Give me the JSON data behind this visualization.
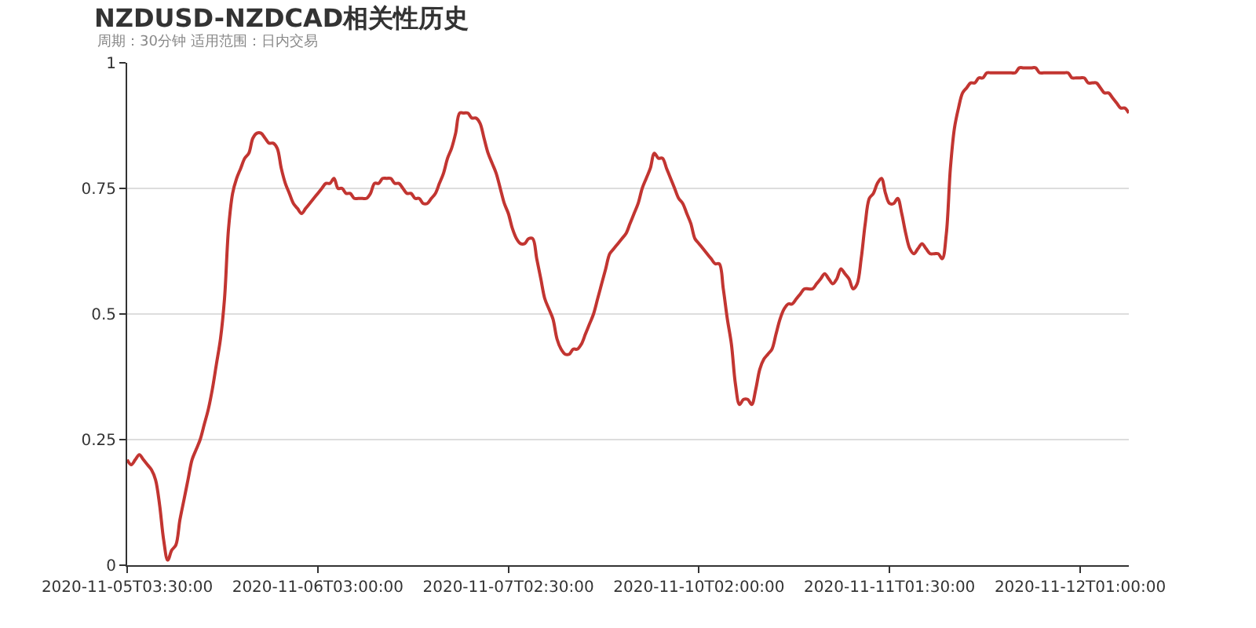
{
  "chart_data": {
    "type": "line",
    "title": "NZDUSD-NZDCAD相关性历史",
    "subtitle": "周期：30分钟 适用范围：日内交易",
    "categories": [
      "2020-11-05T03:30:00",
      null,
      null,
      null,
      null,
      null,
      null,
      null,
      null,
      null,
      null,
      null,
      null,
      null,
      null,
      null,
      null,
      null,
      null,
      null,
      null,
      null,
      null,
      null,
      null,
      null,
      null,
      null,
      null,
      null,
      null,
      null,
      null,
      null,
      null,
      null,
      null,
      null,
      null,
      null,
      null,
      null,
      null,
      null,
      null,
      null,
      null,
      "2020-11-06T03:00:00",
      null,
      null,
      null,
      null,
      null,
      null,
      null,
      null,
      null,
      null,
      null,
      null,
      null,
      null,
      null,
      null,
      null,
      null,
      null,
      null,
      null,
      null,
      null,
      null,
      null,
      null,
      null,
      null,
      null,
      null,
      null,
      null,
      null,
      null,
      null,
      null,
      null,
      null,
      null,
      null,
      null,
      null,
      null,
      null,
      null,
      null,
      "2020-11-07T02:30:00",
      null,
      null,
      null,
      null,
      null,
      null,
      null,
      null,
      null,
      null,
      null,
      null,
      null,
      null,
      null,
      null,
      null,
      null,
      null,
      null,
      null,
      null,
      null,
      null,
      null,
      null,
      null,
      null,
      null,
      null,
      null,
      null,
      null,
      null,
      null,
      null,
      null,
      null,
      null,
      null,
      null,
      null,
      null,
      null,
      null,
      null,
      "2020-11-10T02:00:00",
      null,
      null,
      null,
      null,
      null,
      null,
      null,
      null,
      null,
      null,
      null,
      null,
      null,
      null,
      null,
      null,
      null,
      null,
      null,
      null,
      null,
      null,
      null,
      null,
      null,
      null,
      null,
      null,
      null,
      null,
      null,
      null,
      null,
      null,
      null,
      null,
      null,
      null,
      null,
      null,
      null,
      null,
      null,
      null,
      null,
      null,
      "2020-11-11T01:30:00",
      null,
      null,
      null,
      null,
      null,
      null,
      null,
      null,
      null,
      null,
      null,
      null,
      null,
      null,
      null,
      null,
      null,
      null,
      null,
      null,
      null,
      null,
      null,
      null,
      null,
      null,
      null,
      null,
      null,
      null,
      null,
      null,
      null,
      null,
      null,
      null,
      null,
      null,
      null,
      null,
      null,
      null,
      null,
      null,
      null,
      null,
      "2020-11-12T01:00:00",
      null,
      null,
      null,
      null,
      null,
      null,
      null,
      null,
      null,
      null,
      null,
      null
    ],
    "ylim": [
      0,
      1
    ],
    "yticks": [
      0,
      0.25,
      0.5,
      0.75,
      1
    ],
    "grid": "y",
    "marker": "none",
    "line_style": "solid",
    "series": [
      {
        "color": "#c23531",
        "values": [
          0.21,
          0.2,
          0.21,
          0.22,
          0.21,
          0.2,
          0.19,
          0.17,
          0.12,
          0.05,
          0.01,
          0.03,
          0.04,
          0.09,
          0.13,
          0.17,
          0.21,
          0.23,
          0.25,
          0.28,
          0.31,
          0.35,
          0.4,
          0.45,
          0.53,
          0.67,
          0.74,
          0.77,
          0.79,
          0.81,
          0.82,
          0.85,
          0.86,
          0.86,
          0.85,
          0.84,
          0.84,
          0.83,
          0.79,
          0.76,
          0.74,
          0.72,
          0.71,
          0.7,
          0.71,
          0.72,
          0.73,
          0.74,
          0.75,
          0.76,
          0.76,
          0.77,
          0.75,
          0.75,
          0.74,
          0.74,
          0.73,
          0.73,
          0.73,
          0.73,
          0.74,
          0.76,
          0.76,
          0.77,
          0.77,
          0.77,
          0.76,
          0.76,
          0.75,
          0.74,
          0.74,
          0.73,
          0.73,
          0.72,
          0.72,
          0.73,
          0.74,
          0.76,
          0.78,
          0.81,
          0.83,
          0.86,
          0.9,
          0.9,
          0.9,
          0.89,
          0.89,
          0.88,
          0.85,
          0.82,
          0.8,
          0.78,
          0.75,
          0.72,
          0.7,
          0.67,
          0.65,
          0.64,
          0.64,
          0.65,
          0.65,
          0.61,
          0.57,
          0.53,
          0.51,
          0.49,
          0.45,
          0.43,
          0.42,
          0.42,
          0.43,
          0.43,
          0.44,
          0.46,
          0.48,
          0.5,
          0.53,
          0.56,
          0.59,
          0.62,
          0.63,
          0.64,
          0.65,
          0.66,
          0.68,
          0.7,
          0.72,
          0.75,
          0.77,
          0.79,
          0.82,
          0.81,
          0.81,
          0.79,
          0.77,
          0.75,
          0.73,
          0.72,
          0.7,
          0.68,
          0.65,
          0.64,
          0.63,
          0.62,
          0.61,
          0.6,
          0.6,
          0.55,
          0.49,
          0.44,
          0.36,
          0.32,
          0.33,
          0.33,
          0.32,
          0.35,
          0.39,
          0.41,
          0.42,
          0.43,
          0.46,
          0.49,
          0.51,
          0.52,
          0.52,
          0.53,
          0.54,
          0.55,
          0.55,
          0.55,
          0.56,
          0.57,
          0.58,
          0.57,
          0.56,
          0.57,
          0.59,
          0.58,
          0.57,
          0.55,
          0.56,
          0.61,
          0.68,
          0.73,
          0.74,
          0.76,
          0.77,
          0.74,
          0.72,
          0.72,
          0.73,
          0.7,
          0.66,
          0.63,
          0.62,
          0.63,
          0.64,
          0.63,
          0.62,
          0.62,
          0.62,
          0.61,
          0.66,
          0.79,
          0.87,
          0.91,
          0.94,
          0.95,
          0.96,
          0.96,
          0.97,
          0.97,
          0.98,
          0.98,
          0.98,
          0.98,
          0.98,
          0.98,
          0.98,
          0.98,
          0.99,
          0.99,
          0.99,
          0.99,
          0.99,
          0.98,
          0.98,
          0.98,
          0.98,
          0.98,
          0.98,
          0.98,
          0.98,
          0.97,
          0.97,
          0.97,
          0.97,
          0.96,
          0.96,
          0.96,
          0.95,
          0.94,
          0.94,
          0.93,
          0.92,
          0.91,
          0.91,
          0.9
        ]
      }
    ]
  }
}
